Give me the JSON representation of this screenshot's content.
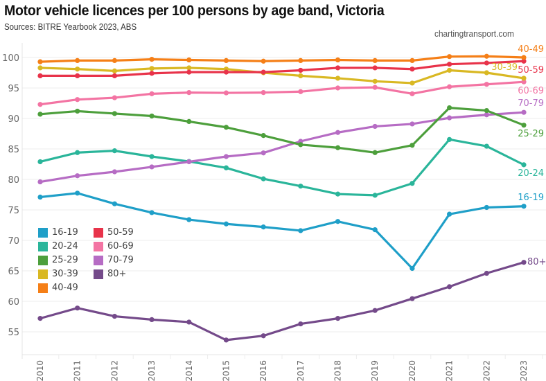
{
  "chart_data": {
    "type": "line",
    "title": "Motor vehicle licences per 100 persons by age band, Victoria",
    "subtitle": "Sources: BITRE Yearbook 2023, ABS",
    "credit": "chartingtransport.com",
    "xlabel": "",
    "ylabel": "",
    "x": [
      "2010",
      "2011",
      "2012",
      "2013",
      "2014",
      "2015",
      "2016",
      "2017",
      "2018",
      "2019",
      "2020",
      "2021",
      "2022",
      "2023"
    ],
    "ylim": [
      51,
      102
    ],
    "yticks": [
      55,
      60,
      65,
      70,
      75,
      80,
      85,
      90,
      95,
      100
    ],
    "grid": true,
    "legend_placement": "bottom-left (inside plot)",
    "series": [
      {
        "name": "16-19",
        "color": "#1f9fc8",
        "values": [
          77.1,
          77.75,
          76.0,
          74.55,
          73.4,
          72.7,
          72.2,
          71.6,
          73.1,
          71.75,
          65.4,
          74.3,
          75.4,
          75.6
        ]
      },
      {
        "name": "20-24",
        "color": "#2ab59a",
        "values": [
          82.9,
          84.4,
          84.7,
          83.75,
          82.95,
          81.9,
          80.1,
          78.9,
          77.6,
          77.4,
          79.35,
          86.55,
          85.45,
          82.4
        ]
      },
      {
        "name": "25-29",
        "color": "#4d9f3c",
        "values": [
          90.7,
          91.2,
          90.8,
          90.4,
          89.5,
          88.55,
          87.2,
          85.7,
          85.2,
          84.4,
          85.6,
          91.75,
          91.3,
          88.9
        ]
      },
      {
        "name": "30-39",
        "color": "#d9b823",
        "values": [
          98.3,
          98.1,
          97.8,
          98.2,
          98.3,
          98.1,
          97.5,
          97.0,
          96.6,
          96.1,
          95.8,
          97.9,
          97.5,
          96.6
        ]
      },
      {
        "name": "40-49",
        "color": "#f57f17",
        "values": [
          99.3,
          99.5,
          99.5,
          99.7,
          99.6,
          99.5,
          99.4,
          99.5,
          99.6,
          99.5,
          99.5,
          100.15,
          100.2,
          100.0
        ]
      },
      {
        "name": "50-59",
        "color": "#e8334a",
        "values": [
          97.0,
          97.0,
          97.0,
          97.4,
          97.6,
          97.6,
          97.6,
          97.9,
          98.3,
          98.3,
          98.1,
          98.9,
          99.1,
          99.4
        ]
      },
      {
        "name": "60-69",
        "color": "#f374a3",
        "values": [
          92.3,
          93.1,
          93.4,
          94.05,
          94.25,
          94.2,
          94.25,
          94.4,
          95.0,
          95.1,
          94.05,
          95.2,
          95.6,
          96.0
        ]
      },
      {
        "name": "70-79",
        "color": "#b66cc4",
        "values": [
          79.6,
          80.6,
          81.25,
          82.05,
          82.9,
          83.75,
          84.35,
          86.25,
          87.7,
          88.7,
          89.1,
          90.1,
          90.6,
          91.0
        ]
      },
      {
        "name": "80+",
        "color": "#744a8a",
        "values": [
          57.2,
          58.9,
          57.55,
          57.0,
          56.6,
          53.65,
          54.35,
          56.3,
          57.2,
          58.5,
          60.45,
          62.4,
          64.6,
          66.4
        ]
      }
    ],
    "end_labels": [
      "40-49",
      "50-59",
      "30-39",
      "60-69",
      "70-79",
      "25-29",
      "20-24",
      "16-19",
      "80+"
    ]
  },
  "legend": {
    "columns": [
      [
        "16-19",
        "20-24",
        "25-29",
        "30-39",
        "40-49"
      ],
      [
        "50-59",
        "60-69",
        "70-79",
        "80+"
      ]
    ]
  }
}
